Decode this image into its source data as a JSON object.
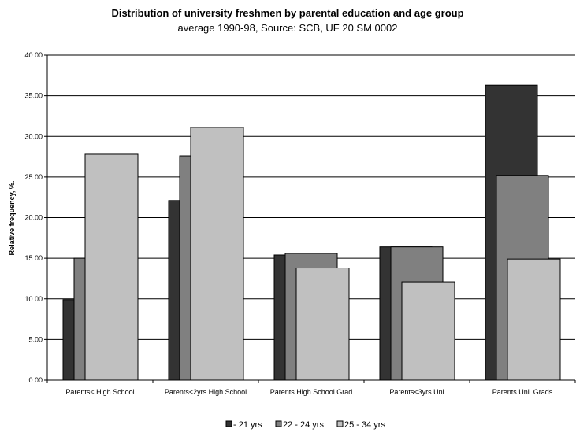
{
  "chart_data": {
    "type": "bar",
    "title": "Distribution of university freshmen by parental education and age group",
    "subtitle": "average 1990-98, Source: SCB, UF 20 SM 0002",
    "xlabel": "",
    "ylabel": "Relative frequency, %.",
    "ylim": [
      0,
      40
    ],
    "yticks": [
      "0.00",
      "5.00",
      "10.00",
      "15.00",
      "20.00",
      "25.00",
      "30.00",
      "35.00",
      "40.00"
    ],
    "categories": [
      "Parents< High School",
      "Parents<2yrs High School",
      "Parents High School Grad",
      "Parents<3yrs Uni",
      "Parents Uni. Grads"
    ],
    "series": [
      {
        "name": "- 21 yrs",
        "color": "#333333",
        "values": [
          9.9,
          22.1,
          15.4,
          16.4,
          36.3
        ]
      },
      {
        "name": "22 - 24 yrs",
        "color": "#808080",
        "values": [
          15.0,
          27.6,
          15.6,
          16.4,
          25.2
        ]
      },
      {
        "name": "25 - 34 yrs",
        "color": "#c0c0c0",
        "values": [
          27.8,
          31.1,
          13.8,
          12.1,
          14.9
        ]
      }
    ],
    "grid": true,
    "legend_position": "bottom"
  }
}
